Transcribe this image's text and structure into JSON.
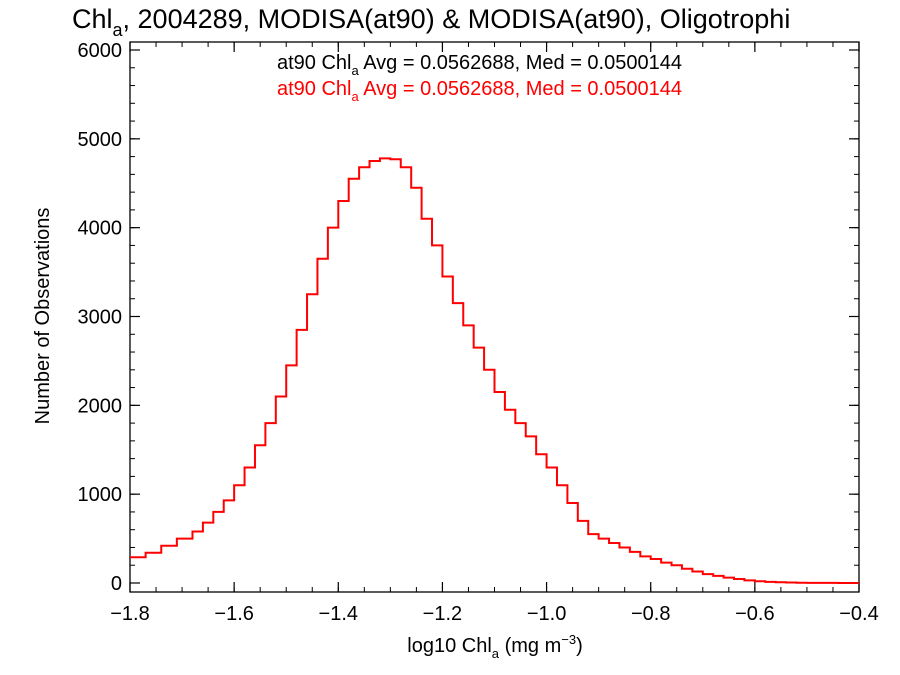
{
  "chart_data": {
    "type": "line",
    "title": {
      "prefix": "Chl",
      "sub": "a",
      "rest": ", 2004289, MODISA(at90) & MODISA(at90), Oligotrophi"
    },
    "xlabel": {
      "prefix": "log10 Chl",
      "sub": "a",
      "mid": " (mg m",
      "sup": "−3",
      "end": ")"
    },
    "ylabel": "Number of Observations",
    "xlim": [
      -1.8,
      -0.4
    ],
    "ylim": [
      0,
      6000
    ],
    "x_ticks": [
      {
        "value": -1.8,
        "label": "−1.8"
      },
      {
        "value": -1.6,
        "label": "−1.6"
      },
      {
        "value": -1.4,
        "label": "−1.4"
      },
      {
        "value": -1.2,
        "label": "−1.2"
      },
      {
        "value": -1.0,
        "label": "−1.0"
      },
      {
        "value": -0.8,
        "label": "−0.8"
      },
      {
        "value": -0.6,
        "label": "−0.6"
      },
      {
        "value": -0.4,
        "label": "−0.4"
      }
    ],
    "y_ticks": [
      {
        "value": 0,
        "label": "0"
      },
      {
        "value": 1000,
        "label": "1000"
      },
      {
        "value": 2000,
        "label": "2000"
      },
      {
        "value": 3000,
        "label": "3000"
      },
      {
        "value": 4000,
        "label": "4000"
      },
      {
        "value": 5000,
        "label": "5000"
      },
      {
        "value": 6000,
        "label": "6000"
      }
    ],
    "grid": false,
    "annotations": [
      {
        "prefix": "at90 Chl",
        "sub": "a",
        "rest": " Avg = 0.0562688, Med = 0.0500144",
        "color": "#000000"
      },
      {
        "prefix": "at90 Chl",
        "sub": "a",
        "rest": " Avg = 0.0562688, Med = 0.0500144",
        "color": "#ff0000"
      }
    ],
    "series": [
      {
        "color": "#ff0000",
        "step": true,
        "x": [
          -1.8,
          -1.77,
          -1.74,
          -1.71,
          -1.68,
          -1.66,
          -1.64,
          -1.62,
          -1.6,
          -1.58,
          -1.56,
          -1.54,
          -1.52,
          -1.5,
          -1.48,
          -1.46,
          -1.44,
          -1.42,
          -1.4,
          -1.38,
          -1.36,
          -1.34,
          -1.32,
          -1.3,
          -1.28,
          -1.26,
          -1.24,
          -1.22,
          -1.2,
          -1.18,
          -1.16,
          -1.14,
          -1.12,
          -1.1,
          -1.08,
          -1.06,
          -1.04,
          -1.02,
          -1.0,
          -0.98,
          -0.96,
          -0.94,
          -0.92,
          -0.9,
          -0.88,
          -0.86,
          -0.84,
          -0.82,
          -0.8,
          -0.78,
          -0.76,
          -0.74,
          -0.72,
          -0.7,
          -0.68,
          -0.66,
          -0.64,
          -0.62,
          -0.6,
          -0.58,
          -0.56,
          -0.54,
          -0.52,
          -0.5,
          -0.48,
          -0.46,
          -0.44,
          -0.42,
          -0.4
        ],
        "y": [
          290,
          340,
          420,
          500,
          580,
          680,
          800,
          930,
          1100,
          1300,
          1550,
          1800,
          2100,
          2450,
          2850,
          3250,
          3650,
          4000,
          4300,
          4550,
          4680,
          4750,
          4780,
          4770,
          4680,
          4450,
          4100,
          3800,
          3450,
          3150,
          2900,
          2650,
          2400,
          2150,
          1950,
          1800,
          1650,
          1450,
          1300,
          1100,
          900,
          700,
          550,
          500,
          450,
          400,
          350,
          300,
          270,
          230,
          200,
          160,
          130,
          100,
          80,
          60,
          45,
          30,
          20,
          12,
          8,
          5,
          3,
          2,
          1,
          1,
          0,
          0,
          0
        ]
      }
    ]
  }
}
